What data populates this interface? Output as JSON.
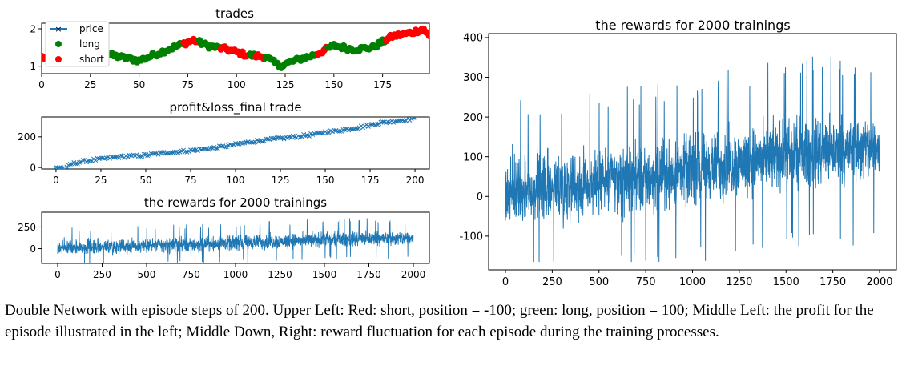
{
  "caption": "Double Network with episode steps of 200. Upper Left: Red: short, position = -100; green: long, position = 100;  Middle Left: the profit for the episode illustrated in the left; Middle Down, Right: reward fluctuation for each episode during the training processes.",
  "colors": {
    "price": "#1f77b4",
    "long": "#008000",
    "short": "#ff0000",
    "axis": "#000000"
  },
  "chart_data": [
    {
      "id": "trades",
      "type": "line",
      "title": "trades",
      "xlim": [
        0,
        199
      ],
      "ylim": [
        0.8,
        2.15
      ],
      "xticks": [
        0,
        25,
        50,
        75,
        100,
        125,
        150,
        175
      ],
      "yticks": [
        1,
        2
      ],
      "legend": {
        "placement": "upper-left",
        "entries": [
          "price",
          "long",
          "short"
        ]
      },
      "series": [
        {
          "name": "price",
          "marker": "x",
          "x_keypoints": [
            0,
            10,
            20,
            30,
            40,
            50,
            60,
            70,
            78,
            85,
            95,
            105,
            115,
            122,
            130,
            140,
            150,
            160,
            170,
            180,
            190,
            196,
            199
          ],
          "y_keypoints": [
            1.25,
            1.1,
            1.2,
            1.35,
            1.25,
            1.15,
            1.35,
            1.55,
            1.7,
            1.55,
            1.45,
            1.3,
            1.25,
            1.0,
            1.15,
            1.3,
            1.55,
            1.45,
            1.5,
            1.8,
            1.9,
            2.0,
            1.8
          ]
        },
        {
          "name": "long",
          "marker": "o",
          "note": "green dots on price where position = long"
        },
        {
          "name": "short",
          "marker": "o",
          "note": "red dots on price where position = short"
        }
      ],
      "short_ranges": [
        [
          0,
          5
        ],
        [
          73,
          80
        ],
        [
          92,
          106
        ],
        [
          110,
          114
        ],
        [
          142,
          146
        ],
        [
          177,
          199
        ]
      ]
    },
    {
      "id": "pnl",
      "type": "line",
      "title": "profit&loss_final trade",
      "xlim": [
        -8,
        208
      ],
      "ylim": [
        -10,
        330
      ],
      "xticks": [
        0,
        25,
        50,
        75,
        100,
        125,
        150,
        175,
        200
      ],
      "yticks": [
        0,
        200
      ],
      "series": [
        {
          "marker": "x",
          "x_keypoints": [
            0,
            3,
            5,
            8,
            15,
            25,
            35,
            50,
            60,
            75,
            90,
            100,
            110,
            125,
            140,
            150,
            160,
            170,
            180,
            190,
            200
          ],
          "y_keypoints": [
            0,
            0,
            -15,
            20,
            40,
            55,
            70,
            80,
            95,
            110,
            130,
            150,
            170,
            190,
            210,
            230,
            245,
            265,
            290,
            305,
            320
          ]
        }
      ]
    },
    {
      "id": "rewards_small",
      "type": "line",
      "title": "the rewards for 2000 trainings",
      "xlim": [
        -90,
        2090
      ],
      "ylim": [
        -170,
        420
      ],
      "xticks": [
        0,
        250,
        500,
        750,
        1000,
        1250,
        1500,
        1750,
        2000
      ],
      "yticks": [
        0,
        250
      ],
      "series": [
        {
          "points": 2000,
          "mean_x": [
            0,
            250,
            500,
            750,
            1000,
            1250,
            1500,
            1750,
            2000
          ],
          "mean_y": [
            15,
            25,
            35,
            45,
            65,
            85,
            105,
            115,
            120
          ],
          "spread": 70,
          "max": 380,
          "min": -165
        }
      ]
    },
    {
      "id": "rewards_large",
      "type": "line",
      "title": "the rewards for 2000 trainings",
      "xlim": [
        -90,
        2090
      ],
      "ylim": [
        -185,
        410
      ],
      "xticks": [
        0,
        250,
        500,
        750,
        1000,
        1250,
        1500,
        1750,
        2000
      ],
      "yticks": [
        -100,
        0,
        100,
        200,
        300,
        400
      ],
      "series": [
        {
          "points": 2000,
          "mean_x": [
            0,
            250,
            500,
            750,
            1000,
            1250,
            1500,
            1750,
            2000
          ],
          "mean_y": [
            15,
            25,
            35,
            45,
            65,
            85,
            105,
            115,
            120
          ],
          "spread": 70,
          "max": 380,
          "min": -165
        }
      ]
    }
  ]
}
